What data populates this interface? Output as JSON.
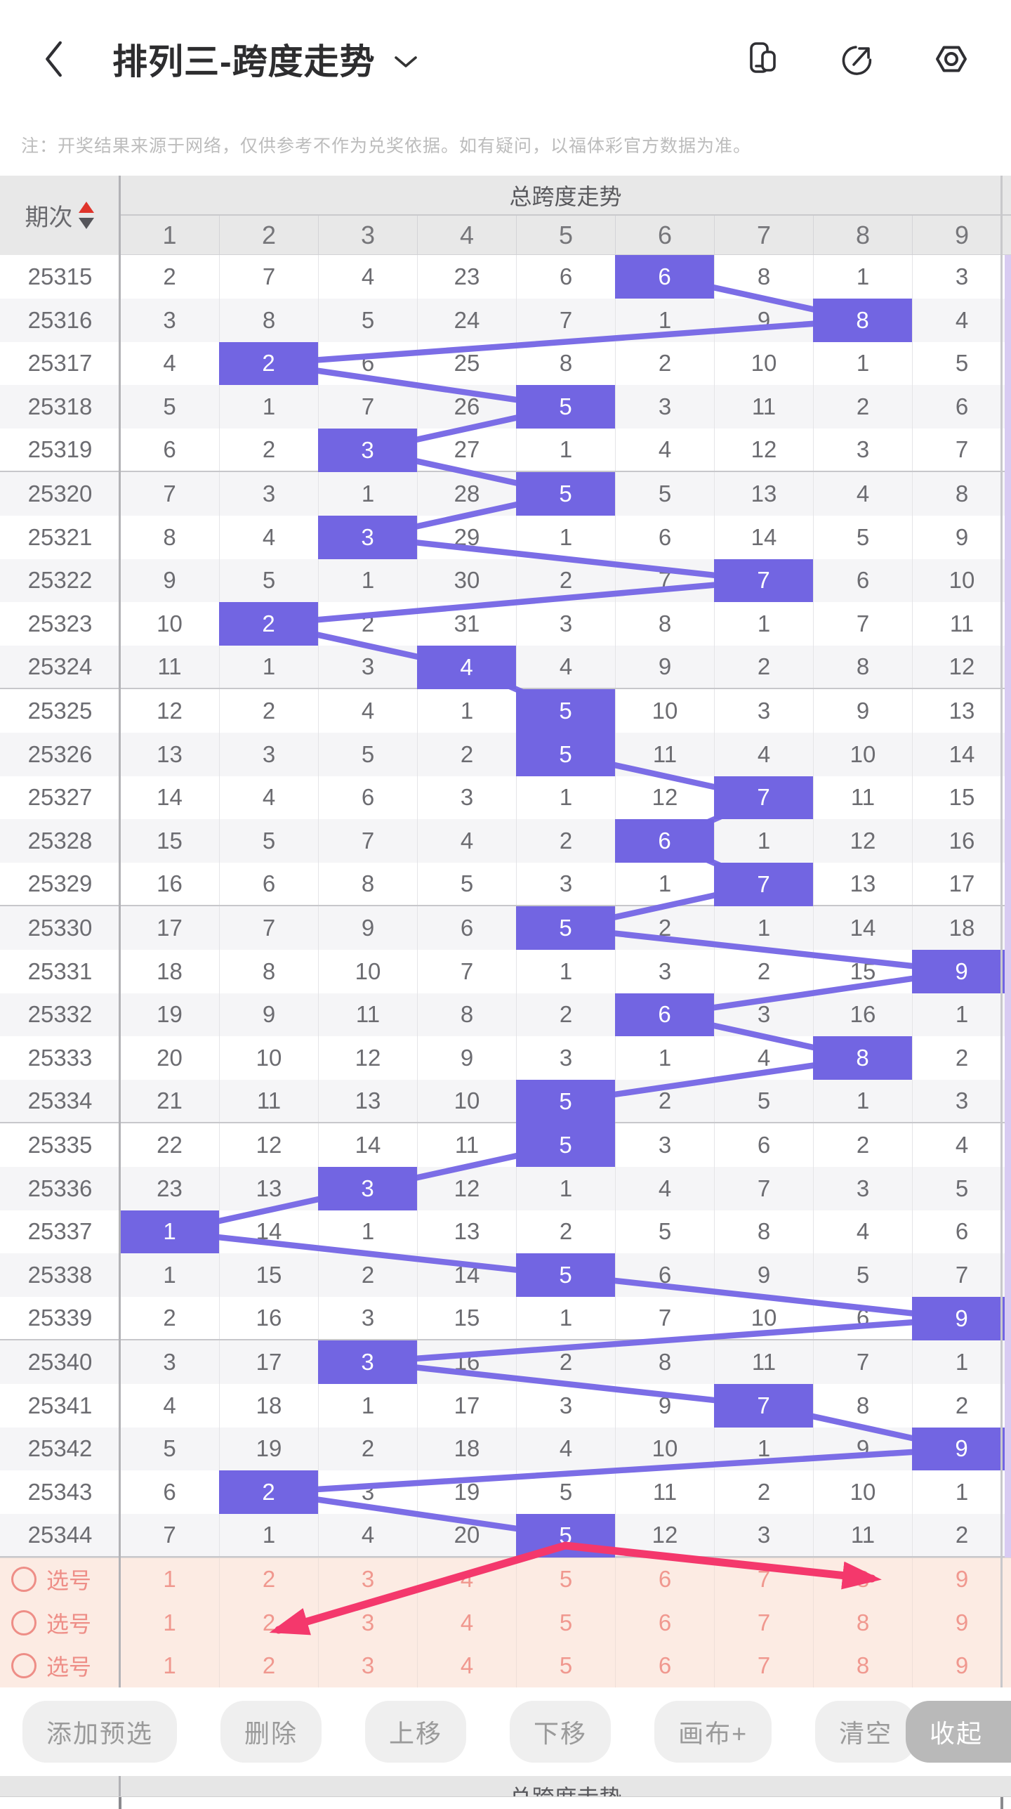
{
  "header": {
    "title": "排列三-跨度走势",
    "icons": [
      "back-icon",
      "chevron-down-icon",
      "windows-icon",
      "share-icon",
      "settings-icon"
    ]
  },
  "note": "注：开奖结果来源于网络，仅供参考不作为兑奖依据。如有疑问，以福体彩官方数据为准。",
  "table": {
    "period_header": "期次",
    "group_header": "总跨度走势",
    "columns": [
      "1",
      "2",
      "3",
      "4",
      "5",
      "6",
      "7",
      "8",
      "9"
    ],
    "rows": [
      {
        "period": "25315",
        "values": [
          2,
          7,
          4,
          23,
          6,
          6,
          8,
          1,
          3
        ],
        "hit": 6
      },
      {
        "period": "25316",
        "values": [
          3,
          8,
          5,
          24,
          7,
          1,
          9,
          8,
          4
        ],
        "hit": 8
      },
      {
        "period": "25317",
        "values": [
          4,
          2,
          6,
          25,
          8,
          2,
          10,
          1,
          5
        ],
        "hit": 2
      },
      {
        "period": "25318",
        "values": [
          5,
          1,
          7,
          26,
          5,
          3,
          11,
          2,
          6
        ],
        "hit": 5
      },
      {
        "period": "25319",
        "values": [
          6,
          2,
          3,
          27,
          1,
          4,
          12,
          3,
          7
        ],
        "hit": 3
      },
      {
        "period": "25320",
        "values": [
          7,
          3,
          1,
          28,
          5,
          5,
          13,
          4,
          8
        ],
        "hit": 5
      },
      {
        "period": "25321",
        "values": [
          8,
          4,
          3,
          29,
          1,
          6,
          14,
          5,
          9
        ],
        "hit": 3
      },
      {
        "period": "25322",
        "values": [
          9,
          5,
          1,
          30,
          2,
          7,
          7,
          6,
          10
        ],
        "hit": 7
      },
      {
        "period": "25323",
        "values": [
          10,
          2,
          2,
          31,
          3,
          8,
          1,
          7,
          11
        ],
        "hit": 2
      },
      {
        "period": "25324",
        "values": [
          11,
          1,
          3,
          4,
          4,
          9,
          2,
          8,
          12
        ],
        "hit": 4
      },
      {
        "period": "25325",
        "values": [
          12,
          2,
          4,
          1,
          5,
          10,
          3,
          9,
          13
        ],
        "hit": 5
      },
      {
        "period": "25326",
        "values": [
          13,
          3,
          5,
          2,
          5,
          11,
          4,
          10,
          14
        ],
        "hit": 5
      },
      {
        "period": "25327",
        "values": [
          14,
          4,
          6,
          3,
          1,
          12,
          7,
          11,
          15
        ],
        "hit": 7
      },
      {
        "period": "25328",
        "values": [
          15,
          5,
          7,
          4,
          2,
          6,
          1,
          12,
          16
        ],
        "hit": 6
      },
      {
        "period": "25329",
        "values": [
          16,
          6,
          8,
          5,
          3,
          1,
          7,
          13,
          17
        ],
        "hit": 7
      },
      {
        "period": "25330",
        "values": [
          17,
          7,
          9,
          6,
          5,
          2,
          1,
          14,
          18
        ],
        "hit": 5
      },
      {
        "period": "25331",
        "values": [
          18,
          8,
          10,
          7,
          1,
          3,
          2,
          15,
          9
        ],
        "hit": 9
      },
      {
        "period": "25332",
        "values": [
          19,
          9,
          11,
          8,
          2,
          6,
          3,
          16,
          1
        ],
        "hit": 6
      },
      {
        "period": "25333",
        "values": [
          20,
          10,
          12,
          9,
          3,
          1,
          4,
          8,
          2
        ],
        "hit": 8
      },
      {
        "period": "25334",
        "values": [
          21,
          11,
          13,
          10,
          5,
          2,
          5,
          1,
          3
        ],
        "hit": 5
      },
      {
        "period": "25335",
        "values": [
          22,
          12,
          14,
          11,
          5,
          3,
          6,
          2,
          4
        ],
        "hit": 5
      },
      {
        "period": "25336",
        "values": [
          23,
          13,
          3,
          12,
          1,
          4,
          7,
          3,
          5
        ],
        "hit": 3
      },
      {
        "period": "25337",
        "values": [
          1,
          14,
          1,
          13,
          2,
          5,
          8,
          4,
          6
        ],
        "hit": 1
      },
      {
        "period": "25338",
        "values": [
          1,
          15,
          2,
          14,
          5,
          6,
          9,
          5,
          7
        ],
        "hit": 5
      },
      {
        "period": "25339",
        "values": [
          2,
          16,
          3,
          15,
          1,
          7,
          10,
          6,
          9
        ],
        "hit": 9
      },
      {
        "period": "25340",
        "values": [
          3,
          17,
          3,
          16,
          2,
          8,
          11,
          7,
          1
        ],
        "hit": 3
      },
      {
        "period": "25341",
        "values": [
          4,
          18,
          1,
          17,
          3,
          9,
          7,
          8,
          2
        ],
        "hit": 7
      },
      {
        "period": "25342",
        "values": [
          5,
          19,
          2,
          18,
          4,
          10,
          1,
          9,
          9
        ],
        "hit": 9
      },
      {
        "period": "25343",
        "values": [
          6,
          2,
          3,
          19,
          5,
          11,
          2,
          10,
          1
        ],
        "hit": 2
      },
      {
        "period": "25344",
        "values": [
          7,
          1,
          4,
          20,
          5,
          12,
          3,
          11,
          2
        ],
        "hit": 5
      }
    ]
  },
  "selection_rows": [
    {
      "label": "选号",
      "values": [
        1,
        2,
        3,
        4,
        5,
        6,
        7,
        8,
        9
      ]
    },
    {
      "label": "选号",
      "values": [
        1,
        2,
        3,
        4,
        5,
        6,
        7,
        8,
        9
      ]
    },
    {
      "label": "选号",
      "values": [
        1,
        2,
        3,
        4,
        5,
        6,
        7,
        8,
        9
      ]
    }
  ],
  "canvas_annotation": {
    "vertex": [
      805,
      1950
    ],
    "tips": [
      [
        397,
        2070
      ],
      [
        1242,
        1997
      ]
    ]
  },
  "toolbar": {
    "buttons": [
      "添加预选",
      "删除",
      "上移",
      "下移",
      "画布+",
      "清空",
      "收起"
    ]
  },
  "bottom": {
    "partial_header": "总跨度走势"
  },
  "colors": {
    "highlight": "#7265e2",
    "trend_line": "#7b6de6",
    "annotation_arrow": "#f4386c",
    "lavender_strip": "#d8cbf2",
    "selection_bg": "#fcebe3",
    "selection_text": "#ef968e",
    "sort_up": "#df342b",
    "sort_down": "#55555a"
  }
}
